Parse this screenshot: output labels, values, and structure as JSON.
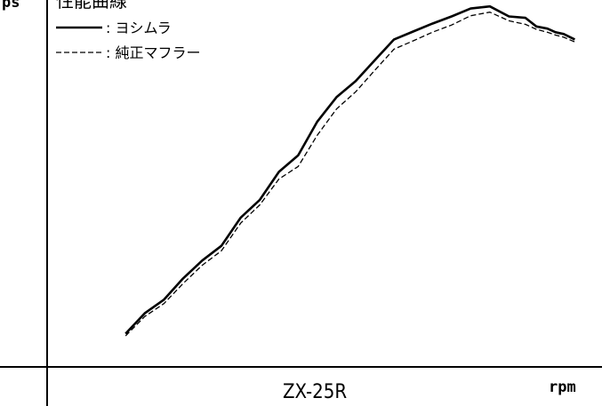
{
  "chart_data": {
    "type": "line",
    "title": "性能曲線",
    "model": "ZX-25R",
    "xlabel": "rpm",
    "ylabel": "ps",
    "xlim": [
      0,
      100
    ],
    "ylim": [
      0,
      100
    ],
    "grid": false,
    "legend_position": "top-left",
    "series": [
      {
        "name": "ヨシムラ",
        "style": "solid",
        "color": "#000000",
        "x": [
          14.0,
          17.5,
          21.0,
          24.5,
          28.0,
          31.5,
          35.0,
          38.5,
          42.0,
          45.5,
          49.0,
          52.5,
          56.0,
          59.5,
          63.0,
          66.5,
          70.0,
          73.5,
          77.0,
          80.5,
          84.0,
          87.0,
          89.0,
          91.0,
          92.5,
          94.0,
          96.0
        ],
        "y": [
          9.0,
          14.7,
          18.5,
          24.4,
          29.4,
          33.5,
          41.3,
          46.3,
          54.1,
          58.7,
          68.1,
          74.9,
          79.4,
          85.2,
          91.0,
          93.2,
          95.4,
          97.4,
          99.6,
          100.2,
          97.4,
          97.0,
          94.6,
          94.0,
          93.0,
          92.5,
          91.0
        ]
      },
      {
        "name": "純正マフラー",
        "style": "dashed",
        "color": "#000000",
        "x": [
          14.0,
          17.5,
          21.0,
          24.5,
          28.0,
          31.5,
          35.0,
          38.5,
          42.0,
          45.5,
          49.0,
          52.5,
          56.0,
          59.5,
          63.0,
          66.5,
          70.0,
          73.5,
          77.0,
          80.5,
          84.0,
          87.0,
          89.0,
          91.0,
          92.5,
          94.0,
          96.0
        ],
        "y": [
          8.4,
          13.8,
          17.4,
          23.0,
          28.1,
          32.1,
          39.8,
          44.9,
          52.1,
          55.6,
          64.3,
          71.6,
          76.4,
          82.4,
          88.3,
          90.6,
          93.0,
          95.0,
          97.6,
          98.6,
          96.2,
          95.2,
          93.8,
          93.0,
          92.2,
          91.6,
          90.3
        ]
      }
    ]
  }
}
